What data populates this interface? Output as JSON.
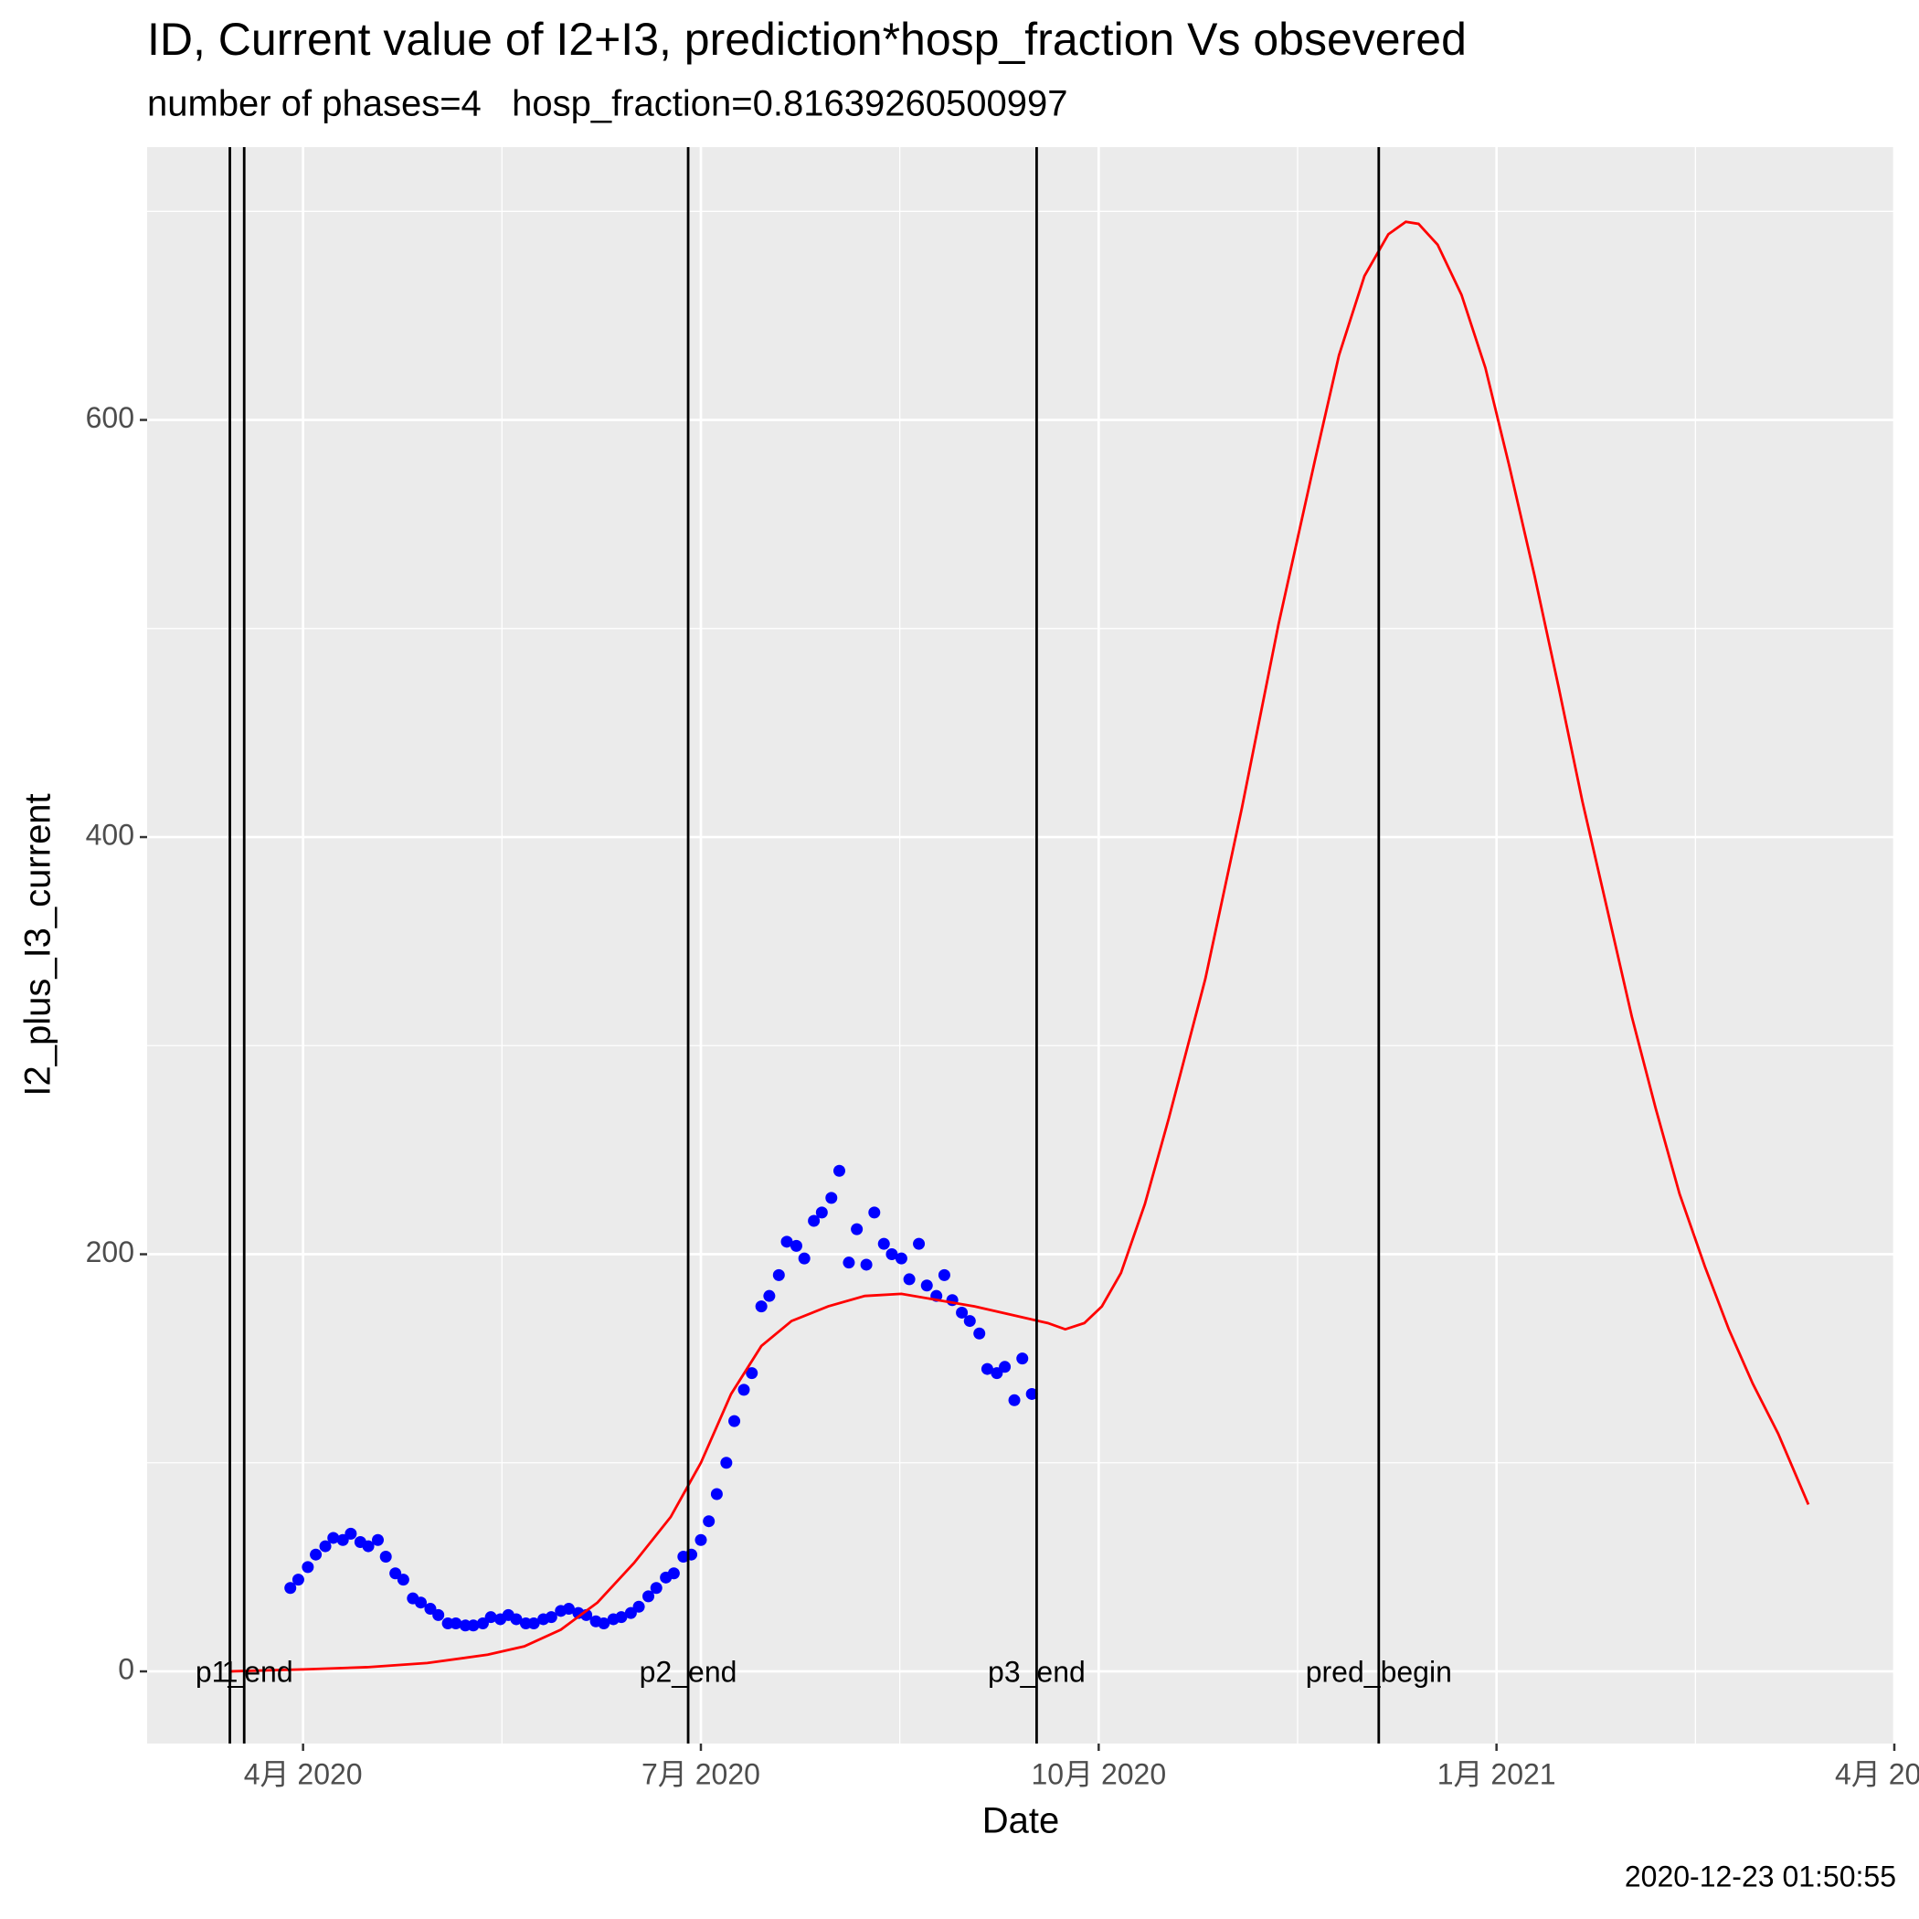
{
  "chart_data": {
    "type": "line",
    "title": "ID, Current value of I2+I3, prediction*hosp_fraction Vs obsevered",
    "subtitle": "number of phases=4   hosp_fraction=0.81639260500997",
    "x_label": "Date",
    "y_label": "I2_plus_I3_current",
    "caption": "2020-12-23 01:50:55",
    "xlim": [
      2020.152,
      2021.25
    ],
    "xticks": [
      {
        "value": 2020.25,
        "label": "4月 2020"
      },
      {
        "value": 2020.5,
        "label": "7月 2020"
      },
      {
        "value": 2020.75,
        "label": "10月 2020"
      },
      {
        "value": 2021.0,
        "label": "1月 2021"
      },
      {
        "value": 2021.25,
        "label": "4月 2021"
      }
    ],
    "x_minor_grid": [
      2020.375,
      2020.625,
      2020.875,
      2021.125
    ],
    "ylim": [
      -34.6,
      730.8
    ],
    "yticks": [
      0,
      200,
      400,
      600
    ],
    "y_minor_grid": [
      100,
      300,
      500,
      700
    ],
    "grid": true,
    "vlines": [
      {
        "x": 2020.204,
        "label": "1"
      },
      {
        "x": 2020.213,
        "label": "p1_end"
      },
      {
        "x": 2020.492,
        "label": "p2_end"
      },
      {
        "x": 2020.711,
        "label": "p3_end"
      },
      {
        "x": 2020.926,
        "label": "pred_begin"
      }
    ],
    "series": [
      {
        "type": "scatter",
        "color": "#0000ff",
        "x": [
          2020.242,
          2020.247,
          2020.253,
          2020.258,
          2020.264,
          2020.269,
          2020.275,
          2020.28,
          2020.286,
          2020.291,
          2020.297,
          2020.302,
          2020.308,
          2020.313,
          2020.319,
          2020.324,
          2020.33,
          2020.335,
          2020.341,
          2020.346,
          2020.352,
          2020.357,
          2020.363,
          2020.368,
          2020.374,
          2020.379,
          2020.384,
          2020.39,
          2020.395,
          2020.401,
          2020.406,
          2020.412,
          2020.417,
          2020.423,
          2020.428,
          2020.434,
          2020.439,
          2020.445,
          2020.45,
          2020.456,
          2020.461,
          2020.467,
          2020.472,
          2020.478,
          2020.483,
          2020.489,
          2020.494,
          2020.5,
          2020.505,
          2020.51,
          2020.516,
          2020.521,
          2020.527,
          2020.532,
          2020.538,
          2020.543,
          2020.549,
          2020.554,
          2020.56,
          2020.565,
          2020.571,
          2020.576,
          2020.582,
          2020.587,
          2020.593,
          2020.598,
          2020.604,
          2020.609,
          2020.615,
          2020.62,
          2020.626,
          2020.631,
          2020.637,
          2020.642,
          2020.648,
          2020.653,
          2020.658,
          2020.664,
          2020.669,
          2020.675,
          2020.68,
          2020.686,
          2020.691,
          2020.697,
          2020.702,
          2020.708
        ],
        "values": [
          40,
          44,
          50,
          56,
          60,
          64,
          63,
          66,
          62,
          60,
          63,
          55,
          47,
          44,
          35,
          33,
          30,
          27,
          23,
          23,
          22,
          22,
          23,
          26,
          25,
          27,
          25,
          23,
          23,
          25,
          26,
          29,
          30,
          28,
          27,
          24,
          23,
          25,
          26,
          28,
          31,
          36,
          40,
          45,
          47,
          55,
          56,
          63,
          72,
          85,
          100,
          120,
          135,
          143,
          175,
          180,
          190,
          206,
          204,
          198,
          216,
          220,
          227,
          240,
          196,
          212,
          195,
          220,
          205,
          200,
          198,
          188,
          205,
          185,
          180,
          190,
          178,
          172,
          168,
          162,
          145,
          143,
          146,
          130,
          150,
          133
        ]
      },
      {
        "type": "line",
        "color": "#ff0000",
        "x": [
          2020.204,
          2020.252,
          2020.29,
          2020.328,
          2020.366,
          2020.389,
          2020.412,
          2020.435,
          2020.458,
          2020.481,
          2020.5,
          2020.519,
          2020.538,
          2020.557,
          2020.58,
          2020.603,
          2020.626,
          2020.649,
          2020.672,
          2020.695,
          2020.718,
          2020.729,
          2020.741,
          2020.752,
          2020.764,
          2020.779,
          2020.794,
          2020.817,
          2020.84,
          2020.863,
          2020.886,
          2020.901,
          2020.917,
          2020.932,
          2020.943,
          2020.951,
          2020.963,
          2020.978,
          2020.993,
          2021.008,
          2021.024,
          2021.039,
          2021.054,
          2021.07,
          2021.085,
          2021.1,
          2021.115,
          2021.131,
          2021.146,
          2021.161,
          2021.177,
          2021.196
        ],
        "values": [
          0,
          1,
          2,
          4,
          8,
          12,
          20,
          33,
          52,
          74,
          100,
          133,
          156,
          168,
          175,
          180,
          181,
          178,
          175,
          171,
          167,
          164,
          167,
          175,
          191,
          224,
          265,
          332,
          414,
          502,
          581,
          631,
          669,
          689,
          695,
          694,
          684,
          660,
          625,
          578,
          525,
          472,
          417,
          364,
          314,
          270,
          229,
          194,
          164,
          138,
          114,
          80
        ]
      }
    ]
  }
}
